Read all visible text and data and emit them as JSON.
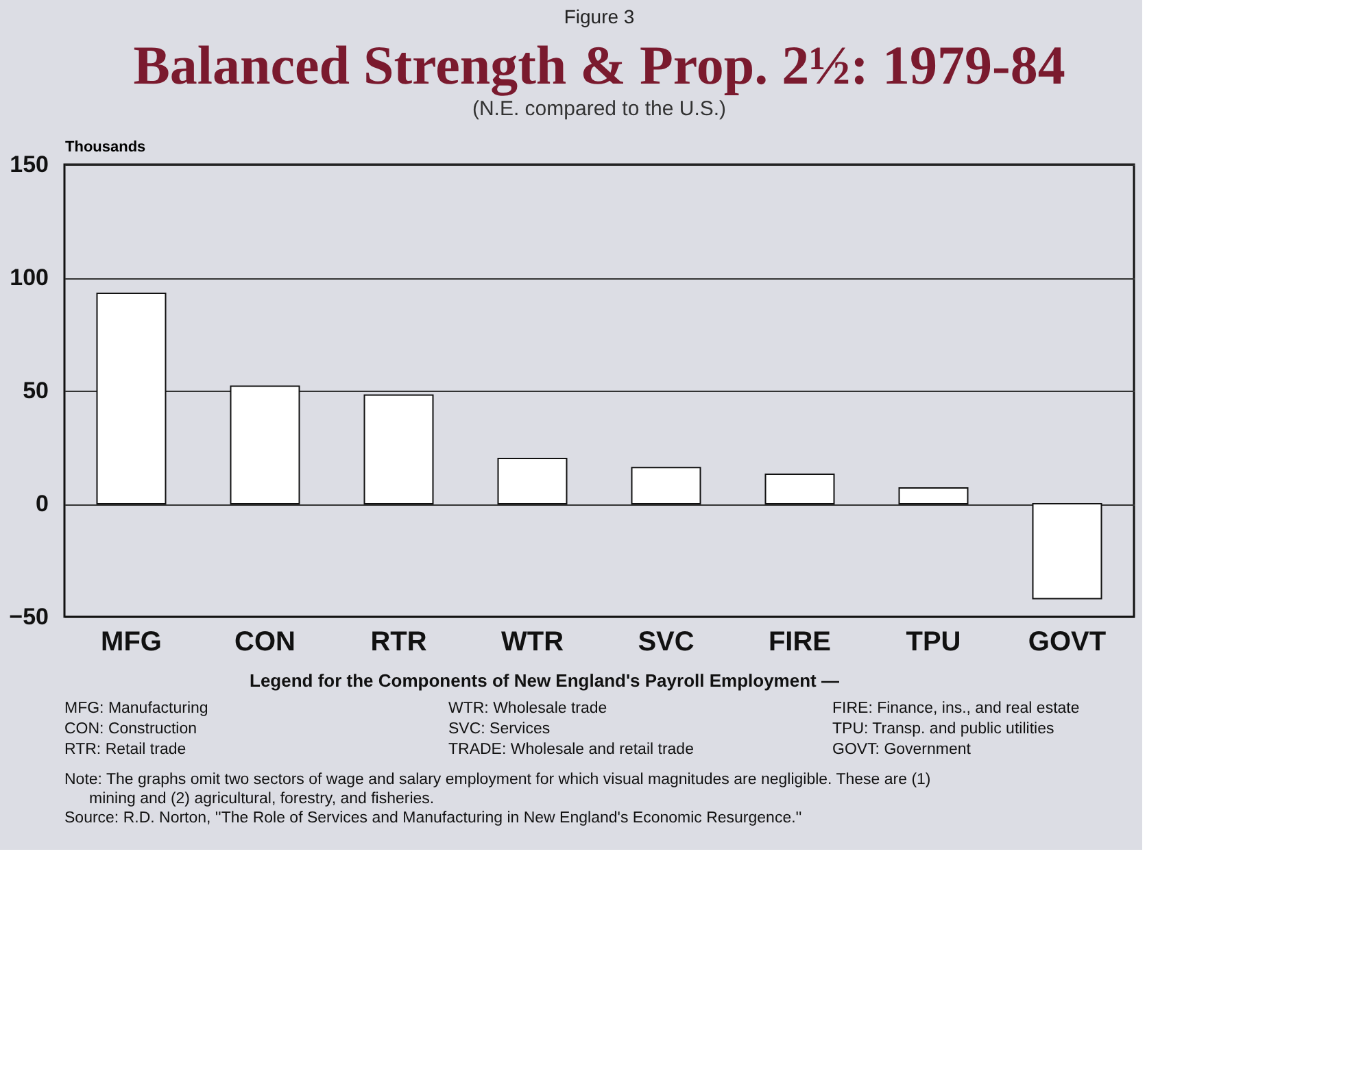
{
  "chart_data": {
    "type": "bar",
    "title": "Balanced Strength & Prop. 2½: 1979-84",
    "subtitle": "(N.E. compared to the U.S.)",
    "ylabel": "Thousands",
    "categories": [
      "MFG",
      "CON",
      "RTR",
      "WTR",
      "SVC",
      "FIRE",
      "TPU",
      "GOVT"
    ],
    "values": [
      93,
      52,
      48,
      20,
      16,
      13,
      7,
      -42
    ],
    "color": "#ffffff",
    "ylim": [
      -50,
      150
    ],
    "yticks": [
      -50,
      0,
      50,
      100,
      150
    ],
    "grid": "y",
    "annotations": [
      "Figure 3",
      "Legend for the Components of New England's Payroll Employment —",
      "MFG: Manufacturing",
      "WTR: Wholesale trade",
      "FIRE: Finance, ins., and real estate",
      "CON: Construction",
      "SVC: Services",
      "TPU: Transp. and public utilities",
      "RTR: Retail trade",
      "TRADE: Wholesale and retail trade",
      "GOVT: Government",
      "Note: The graphs omit two sectors of wage and salary employment for which visual magnitudes are negligible. These are (1) mining and (2) agricultural, forestry, and fisheries.",
      "Source: R.D. Norton, ''The Role of Services and Manufacturing in New England's Economic Resurgence.''"
    ]
  }
}
